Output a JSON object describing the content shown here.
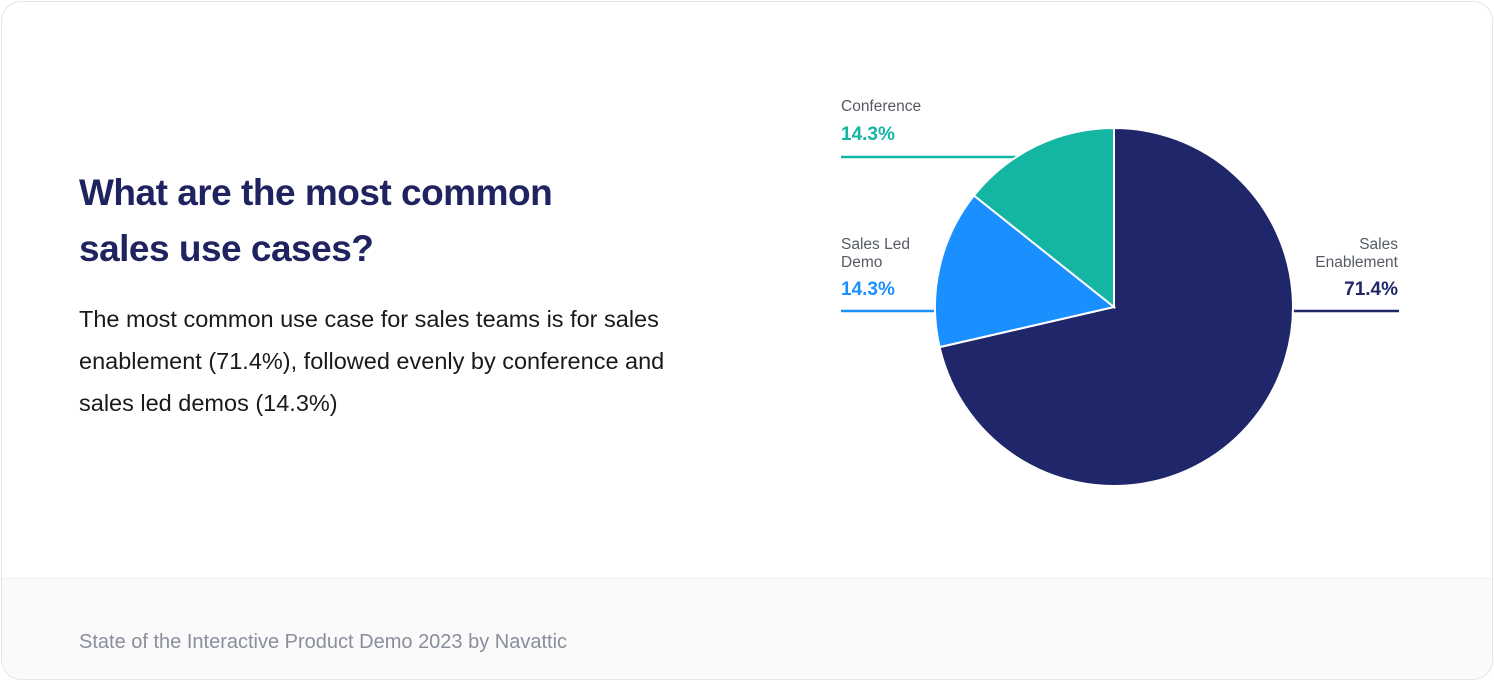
{
  "heading": "What are the most common sales use cases?",
  "description": "The most common use case for sales teams is for sales enablement (71.4%), followed evenly by conference and sales led demos (14.3%)",
  "footer": "State of the Interactive Product Demo 2023 by Navattic",
  "chart_data": {
    "type": "pie",
    "title": "",
    "slices": [
      {
        "label": "Sales Enablement",
        "value": 71.4,
        "display": "71.4%",
        "color": "#1f276a"
      },
      {
        "label": "Sales Led Demo",
        "value": 14.3,
        "display": "14.3%",
        "color": "#1a8fff"
      },
      {
        "label": "Conference",
        "value": 14.3,
        "display": "14.3%",
        "color": "#14b5a3"
      }
    ]
  }
}
